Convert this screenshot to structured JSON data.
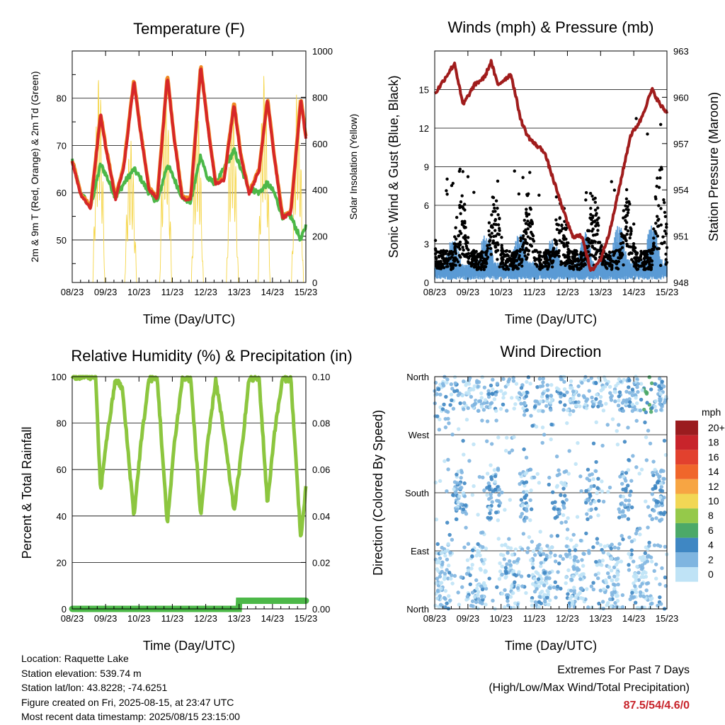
{
  "x_ticks": [
    "08/23",
    "09/23",
    "10/23",
    "11/23",
    "12/23",
    "13/23",
    "14/23",
    "15/23"
  ],
  "x_label": "Time (Day/UTC)",
  "panels": {
    "temperature": {
      "title": "Temperature (F)",
      "ylabel_left": "2m & 9m T (Red, Orange) & 2m Td (Green)",
      "ylabel_right": "Solar Insolation (Yellow)",
      "yticks_left": [
        50,
        60,
        70,
        80
      ],
      "yticks_right": [
        0,
        200,
        400,
        600,
        800,
        1000
      ],
      "colors": {
        "t2m": "#d62728",
        "t9m": "#f08a24",
        "td": "#4cb848",
        "solar": "#f5d547"
      }
    },
    "winds": {
      "title": "Winds (mph) & Pressure (mb)",
      "ylabel_left": "Sonic Wind & Gust (Blue, Black)",
      "ylabel_right": "Station Pressure (Maroon)",
      "yticks_left": [
        0,
        3,
        6,
        9,
        12,
        15
      ],
      "yticks_right": [
        948,
        951,
        954,
        957,
        960,
        963
      ],
      "colors": {
        "wind": "#5b9bd5",
        "gust": "#000000",
        "pressure": "#a01c1c"
      }
    },
    "humidity": {
      "title": "Relative Humidity (%) & Precipitation (in)",
      "ylabel_left": "Percent & Total Rainfall",
      "yticks_left": [
        0,
        20,
        40,
        60,
        80,
        100
      ],
      "yticks_right": [
        "0.00",
        "0.02",
        "0.04",
        "0.06",
        "0.08",
        "0.10"
      ],
      "colors": {
        "rh": "#8cc63f",
        "precip": "#4cb848"
      }
    },
    "wind_direction": {
      "title": "Wind Direction",
      "ylabel_left": "Direction (Colored By Speed)",
      "yticks_left": [
        "North",
        "East",
        "South",
        "West",
        "North"
      ],
      "legend_title": "mph",
      "legend_labels": [
        "20+",
        "18",
        "16",
        "14",
        "12",
        "10",
        "8",
        "6",
        "4",
        "2",
        "0"
      ],
      "legend_colors": [
        "#9b1c1f",
        "#c8242b",
        "#e2412e",
        "#f0662b",
        "#f7a543",
        "#f2d755",
        "#95c94a",
        "#4ca968",
        "#3f87c3",
        "#7fb5e0",
        "#bfe3f6"
      ]
    }
  },
  "info": {
    "location": "Location: Raquette Lake",
    "elevation": "Station elevation: 539.74 m",
    "latlon": "Station lat/lon: 43.8228; -74.6251",
    "created": "Figure created on Fri, 2025-08-15, at 23:47 UTC",
    "recent": "Most recent data timestamp: 2025/08/15 23:15:00"
  },
  "extremes": {
    "title": "Extremes For Past 7 Days",
    "subtitle": "(High/Low/Max Wind/Total Precipitation)",
    "value": "87.5/54/4.6/0"
  },
  "chart_data": [
    {
      "type": "line",
      "title": "Temperature (F)",
      "xlabel": "Time (Day/UTC)",
      "ylabel": "2m & 9m T (Red, Orange) & 2m Td (Green)",
      "y2label": "Solar Insolation (Yellow)",
      "x": [
        "08/23",
        "09/23",
        "10/23",
        "11/23",
        "12/23",
        "13/23",
        "14/23",
        "15/23"
      ],
      "ylim": [
        41,
        90
      ],
      "y2lim": [
        0,
        1000
      ],
      "series": [
        {
          "name": "2m T",
          "points": [
            [
              0,
              67
            ],
            [
              0.25,
              60
            ],
            [
              0.55,
              57
            ],
            [
              0.85,
              77
            ],
            [
              1.0,
              70
            ],
            [
              1.3,
              59
            ],
            [
              1.55,
              66
            ],
            [
              1.85,
              84
            ],
            [
              2.05,
              73
            ],
            [
              2.3,
              61
            ],
            [
              2.55,
              59
            ],
            [
              2.85,
              85
            ],
            [
              3.05,
              72
            ],
            [
              3.3,
              59
            ],
            [
              3.55,
              59
            ],
            [
              3.85,
              87
            ],
            [
              4.05,
              75
            ],
            [
              4.3,
              62
            ],
            [
              4.55,
              63
            ],
            [
              4.85,
              79
            ],
            [
              5.05,
              68
            ],
            [
              5.3,
              60
            ],
            [
              5.6,
              65
            ],
            [
              5.85,
              80
            ],
            [
              6.05,
              68
            ],
            [
              6.3,
              55
            ],
            [
              6.55,
              56
            ],
            [
              6.85,
              80
            ],
            [
              7.0,
              72
            ]
          ]
        },
        {
          "name": "2m Td",
          "points": [
            [
              0,
              67
            ],
            [
              0.25,
              60
            ],
            [
              0.55,
              57
            ],
            [
              0.85,
              66
            ],
            [
              1.0,
              64
            ],
            [
              1.3,
              59
            ],
            [
              1.55,
              62
            ],
            [
              1.85,
              65
            ],
            [
              2.05,
              63
            ],
            [
              2.3,
              60
            ],
            [
              2.55,
              58
            ],
            [
              2.85,
              66
            ],
            [
              3.05,
              63
            ],
            [
              3.3,
              59
            ],
            [
              3.55,
              58
            ],
            [
              3.85,
              68
            ],
            [
              4.05,
              63
            ],
            [
              4.3,
              62
            ],
            [
              4.55,
              65
            ],
            [
              4.85,
              69
            ],
            [
              5.05,
              65
            ],
            [
              5.3,
              61
            ],
            [
              5.6,
              60
            ],
            [
              5.85,
              62
            ],
            [
              6.05,
              60
            ],
            [
              6.3,
              55
            ],
            [
              6.55,
              55
            ],
            [
              6.85,
              50
            ],
            [
              7.0,
              53
            ]
          ]
        },
        {
          "name": "Solar",
          "axis": "right",
          "peaks": [
            [
              0.8,
              900
            ],
            [
              1.75,
              620
            ],
            [
              2.8,
              860
            ],
            [
              3.75,
              750
            ],
            [
              4.8,
              800
            ],
            [
              5.75,
              900
            ],
            [
              6.75,
              840
            ]
          ]
        }
      ]
    },
    {
      "type": "line",
      "title": "Winds (mph) & Pressure (mb)",
      "xlabel": "Time (Day/UTC)",
      "ylabel": "Sonic Wind & Gust (Blue, Black)",
      "y2label": "Station Pressure (Maroon)",
      "x": [
        "08/23",
        "09/23",
        "10/23",
        "11/23",
        "12/23",
        "13/23",
        "14/23",
        "15/23"
      ],
      "ylim": [
        0,
        18
      ],
      "y2lim": [
        948,
        963
      ],
      "series": [
        {
          "name": "Station Pressure",
          "axis": "right",
          "points": [
            [
              0,
              960.2
            ],
            [
              0.3,
              961.2
            ],
            [
              0.6,
              962.2
            ],
            [
              0.85,
              959.5
            ],
            [
              1.2,
              960.8
            ],
            [
              1.5,
              961.3
            ],
            [
              1.7,
              962.3
            ],
            [
              1.9,
              960.8
            ],
            [
              2.3,
              961.5
            ],
            [
              2.6,
              958.5
            ],
            [
              2.8,
              957.5
            ],
            [
              3.0,
              957.0
            ],
            [
              3.3,
              956.5
            ],
            [
              3.6,
              954.5
            ],
            [
              3.9,
              952.5
            ],
            [
              4.15,
              951
            ],
            [
              4.45,
              951
            ],
            [
              4.7,
              948.7
            ],
            [
              5.0,
              949.5
            ],
            [
              5.3,
              951.5
            ],
            [
              5.6,
              954.5
            ],
            [
              5.9,
              957.5
            ],
            [
              6.2,
              958.5
            ],
            [
              6.55,
              960.5
            ],
            [
              6.8,
              959.5
            ],
            [
              7.0,
              959.0
            ]
          ]
        },
        {
          "name": "Sonic Wind",
          "daily_peaks": [
            3.5,
            4.0,
            4.0,
            3.5,
            4.0,
            4.5,
            4.5,
            4.0
          ]
        },
        {
          "name": "Gust",
          "daily_peaks": [
            9,
            9,
            9,
            8,
            9,
            8,
            16,
            8
          ]
        }
      ]
    },
    {
      "type": "line",
      "title": "Relative Humidity (%) & Precipitation (in)",
      "xlabel": "Time (Day/UTC)",
      "ylabel": "Percent & Total Rainfall",
      "x": [
        "08/23",
        "09/23",
        "10/23",
        "11/23",
        "12/23",
        "13/23",
        "14/23",
        "15/23"
      ],
      "ylim": [
        0,
        100
      ],
      "y2lim": [
        0,
        0.1
      ],
      "series": [
        {
          "name": "RH",
          "points": [
            [
              0,
              100
            ],
            [
              0.7,
              100
            ],
            [
              0.85,
              50
            ],
            [
              1.0,
              70
            ],
            [
              1.3,
              99
            ],
            [
              1.5,
              95
            ],
            [
              1.85,
              40
            ],
            [
              2.05,
              70
            ],
            [
              2.3,
              99
            ],
            [
              2.55,
              99
            ],
            [
              2.85,
              36
            ],
            [
              3.05,
              70
            ],
            [
              3.3,
              99
            ],
            [
              3.55,
              99
            ],
            [
              3.85,
              40
            ],
            [
              4.05,
              70
            ],
            [
              4.3,
              99
            ],
            [
              4.55,
              75
            ],
            [
              4.85,
              42
            ],
            [
              5.05,
              65
            ],
            [
              5.3,
              99
            ],
            [
              5.6,
              99
            ],
            [
              5.85,
              45
            ],
            [
              6.05,
              75
            ],
            [
              6.3,
              99
            ],
            [
              6.55,
              99
            ],
            [
              6.85,
              30
            ],
            [
              7.0,
              52
            ]
          ]
        },
        {
          "name": "Precipitation",
          "axis": "right",
          "points": [
            [
              0,
              0
            ],
            [
              4.99,
              0
            ],
            [
              5.0,
              0.0035
            ],
            [
              7.0,
              0.0035
            ]
          ]
        }
      ]
    },
    {
      "type": "scatter",
      "title": "Wind Direction",
      "xlabel": "Time (Day/UTC)",
      "ylabel": "Direction (Colored By Speed)",
      "x": [
        "08/23",
        "09/23",
        "10/23",
        "11/23",
        "12/23",
        "13/23",
        "14/23",
        "15/23"
      ],
      "y_categories": [
        "North",
        "East",
        "South",
        "West",
        "North"
      ],
      "color_scale_mph": [
        0,
        2,
        4,
        6,
        8,
        10,
        12,
        14,
        16,
        18,
        20
      ]
    }
  ]
}
